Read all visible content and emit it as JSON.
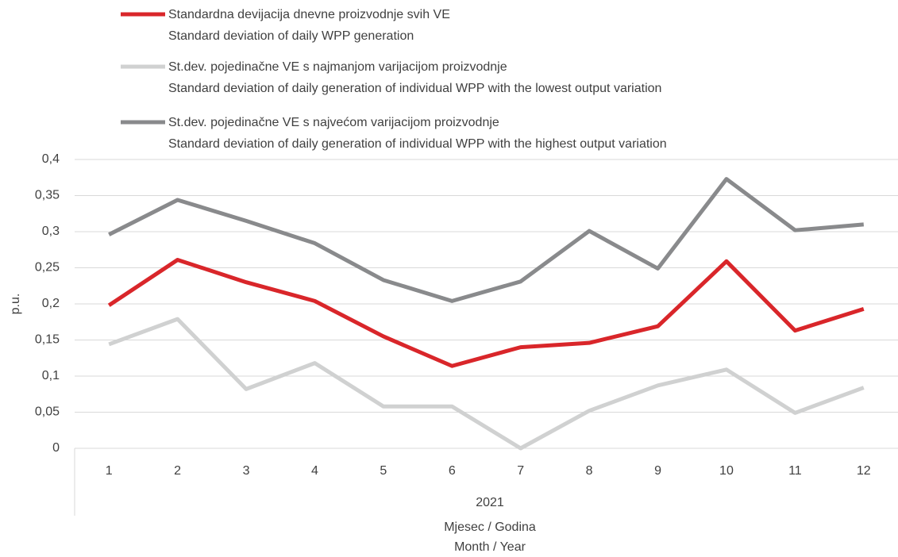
{
  "chart_data": {
    "type": "line",
    "categories": [
      "1",
      "2",
      "3",
      "4",
      "5",
      "6",
      "7",
      "8",
      "9",
      "10",
      "11",
      "12"
    ],
    "group_label": "2021",
    "x_label": "Mjesec / Godina\nMonth / Year",
    "y_label": "p.u.",
    "ylim": [
      0,
      0.4
    ],
    "yticks": [
      0,
      {
        "value": 0.05,
        "label": "0,05"
      },
      {
        "value": 0.1,
        "label": "0,1"
      },
      {
        "value": 0.15,
        "label": "0,15"
      },
      {
        "value": 0.2,
        "label": "0,2"
      },
      {
        "value": 0.25,
        "label": "0,25"
      },
      {
        "value": 0.3,
        "label": "0,3"
      },
      {
        "value": 0.35,
        "label": "0,35"
      },
      {
        "value": 0.4,
        "label": "0,4"
      }
    ],
    "grid": true,
    "series": [
      {
        "name": "Standardna devijacija dnevne proizvodnje svih VE\nStandard deviation of daily WPP generation",
        "color": "#d9262a",
        "values": [
          0.198,
          0.261,
          0.23,
          0.204,
          0.155,
          0.114,
          0.14,
          0.146,
          0.169,
          0.259,
          0.163,
          0.193
        ]
      },
      {
        "name": "St.dev. pojedinačne VE s najmanjom varijacijom proizvodnje\nStandard deviation of daily generation of individual WPP with the lowest output variation",
        "color": "#d0d1d1",
        "values": [
          0.144,
          0.179,
          0.082,
          0.118,
          0.058,
          0.058,
          0,
          0.052,
          0.087,
          0.109,
          0.049,
          0.084
        ]
      },
      {
        "name": "St.dev. pojedinačne VE s najvećom varijacijom proizvodnje\nStandard deviation of daily generation of individual WPP with the highest output variation",
        "color": "#898a8c",
        "values": [
          0.296,
          0.344,
          0.315,
          0.284,
          0.233,
          0.204,
          0.231,
          0.301,
          0.249,
          0.373,
          0.302,
          0.31
        ]
      }
    ]
  }
}
